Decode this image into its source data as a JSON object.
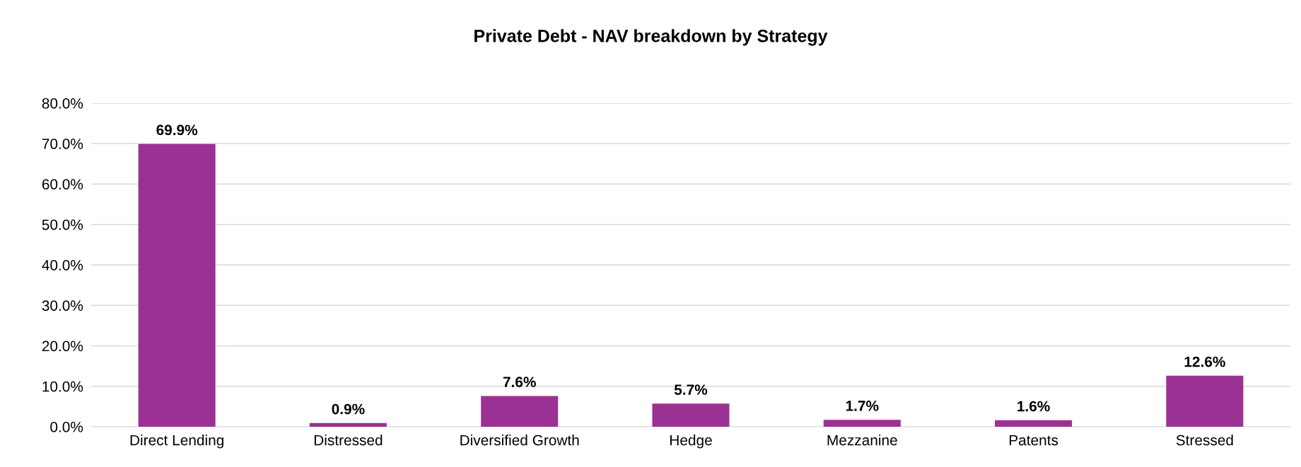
{
  "chart_data": {
    "type": "bar",
    "title": "Private Debt - NAV breakdown by Strategy",
    "categories": [
      "Direct Lending",
      "Distressed",
      "Diversified Growth",
      "Hedge",
      "Mezzanine",
      "Patents",
      "Stressed"
    ],
    "values": [
      69.9,
      0.9,
      7.6,
      5.7,
      1.7,
      1.6,
      12.6
    ],
    "value_labels": [
      "69.9%",
      "0.9%",
      "7.6%",
      "5.7%",
      "1.7%",
      "1.6%",
      "12.6%"
    ],
    "color": "#9b3192",
    "ylim": [
      0,
      80
    ],
    "yticks": [
      {
        "value": 0,
        "label": "0.0%"
      },
      {
        "value": 10,
        "label": "10.0%"
      },
      {
        "value": 20,
        "label": "20.0%"
      },
      {
        "value": 30,
        "label": "30.0%"
      },
      {
        "value": 40,
        "label": "40.0%"
      },
      {
        "value": 50,
        "label": "50.0%"
      },
      {
        "value": 60,
        "label": "60.0%"
      },
      {
        "value": 70,
        "label": "70.0%"
      },
      {
        "value": 80,
        "label": "80.0%"
      }
    ],
    "grid": "y",
    "legend": false
  }
}
